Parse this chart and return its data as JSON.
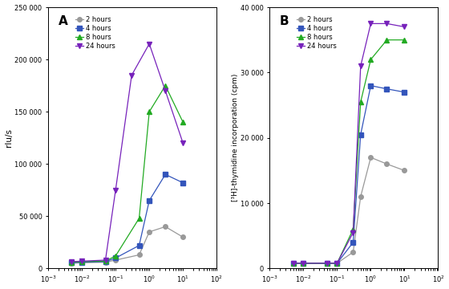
{
  "panel_A": {
    "title": "A",
    "ylabel": "rlu/s",
    "ylim": [
      0,
      250000
    ],
    "yticks": [
      0,
      50000,
      100000,
      150000,
      200000,
      250000
    ],
    "ytick_labels": [
      "0",
      "50 000",
      "100 000",
      "150 000",
      "200 000",
      "250 000"
    ],
    "xlim_lo": 0.001,
    "xlim_hi": 100,
    "series": {
      "2 hours": {
        "color": "#999999",
        "marker": "o",
        "x": [
          0.005,
          0.01,
          0.05,
          0.1,
          0.5,
          1.0,
          3.0,
          10.0
        ],
        "y": [
          5000,
          5500,
          6000,
          8000,
          13000,
          35000,
          40000,
          30000
        ]
      },
      "4 hours": {
        "color": "#3355bb",
        "marker": "s",
        "x": [
          0.005,
          0.01,
          0.05,
          0.1,
          0.5,
          1.0,
          3.0,
          10.0
        ],
        "y": [
          5500,
          6000,
          6500,
          10000,
          22000,
          65000,
          90000,
          82000
        ]
      },
      "8 hours": {
        "color": "#22aa22",
        "marker": "^",
        "x": [
          0.005,
          0.01,
          0.05,
          0.1,
          0.5,
          1.0,
          3.0,
          10.0
        ],
        "y": [
          6000,
          6500,
          7000,
          12000,
          48000,
          150000,
          175000,
          140000
        ]
      },
      "24 hours": {
        "color": "#7722bb",
        "marker": "v",
        "x": [
          0.005,
          0.01,
          0.05,
          0.1,
          0.3,
          1.0,
          3.0,
          10.0
        ],
        "y": [
          6500,
          7000,
          8000,
          75000,
          185000,
          215000,
          170000,
          120000
        ]
      }
    }
  },
  "panel_B": {
    "title": "B",
    "ylabel": "[³H]-thymidine incorporation (cpm)",
    "ylim": [
      0,
      40000
    ],
    "yticks": [
      0,
      10000,
      20000,
      30000,
      40000
    ],
    "ytick_labels": [
      "0",
      "10 000",
      "20 000",
      "30 000",
      "40 000"
    ],
    "xlim_lo": 0.001,
    "xlim_hi": 100,
    "series": {
      "2 hours": {
        "color": "#999999",
        "marker": "o",
        "x": [
          0.005,
          0.01,
          0.05,
          0.1,
          0.3,
          0.5,
          1.0,
          3.0,
          10.0
        ],
        "y": [
          800,
          800,
          800,
          800,
          2500,
          11000,
          17000,
          16000,
          15000
        ]
      },
      "4 hours": {
        "color": "#3355bb",
        "marker": "s",
        "x": [
          0.005,
          0.01,
          0.05,
          0.1,
          0.3,
          0.5,
          1.0,
          3.0,
          10.0
        ],
        "y": [
          800,
          800,
          800,
          800,
          4000,
          20500,
          28000,
          27500,
          27000
        ]
      },
      "8 hours": {
        "color": "#22aa22",
        "marker": "^",
        "x": [
          0.005,
          0.01,
          0.05,
          0.1,
          0.3,
          0.5,
          1.0,
          3.0,
          10.0
        ],
        "y": [
          800,
          800,
          800,
          800,
          6000,
          25500,
          32000,
          35000,
          35000
        ]
      },
      "24 hours": {
        "color": "#7722bb",
        "marker": "v",
        "x": [
          0.005,
          0.01,
          0.05,
          0.1,
          0.3,
          0.5,
          1.0,
          3.0,
          10.0
        ],
        "y": [
          800,
          800,
          800,
          800,
          5500,
          31000,
          37500,
          37500,
          37000
        ]
      }
    }
  },
  "legend_labels": [
    "2 hours",
    "4 hours",
    "8 hours",
    "24 hours"
  ],
  "background_color": "#ffffff",
  "plot_bg": "#ffffff"
}
